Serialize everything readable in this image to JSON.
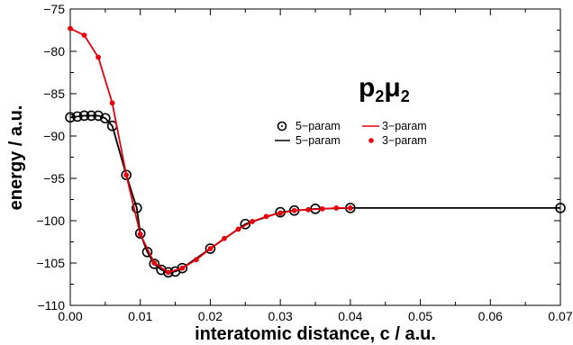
{
  "chart_data": {
    "type": "line",
    "xlabel": "interatomic distance, c / a.u.",
    "ylabel": "energy / a.u.",
    "xlim": [
      0.0,
      0.07
    ],
    "ylim": [
      -110,
      -75
    ],
    "x_ticks": [
      "0.00",
      "0.01",
      "0.02",
      "0.03",
      "0.04",
      "0.05",
      "0.06",
      "0.07"
    ],
    "y_ticks": [
      "−75",
      "−80",
      "−85",
      "−90",
      "−95",
      "−100",
      "−105",
      "−110"
    ],
    "annotation": {
      "base": "p",
      "sub1": "2",
      "greek": "μ",
      "sub2": "2"
    },
    "legend": [
      {
        "label": "5−param",
        "marker": "open-circle",
        "color": "#000000"
      },
      {
        "label": "3−param",
        "marker": "line",
        "color": "#e8000b"
      },
      {
        "label": "5−param",
        "marker": "line",
        "color": "#000000"
      },
      {
        "label": "3−param",
        "marker": "dot",
        "color": "#e8000b"
      }
    ],
    "series": [
      {
        "name": "5−param",
        "color": "#000000",
        "style": "line-open-circles",
        "x": [
          0.0,
          0.001,
          0.002,
          0.003,
          0.004,
          0.005,
          0.006,
          0.008,
          0.0095,
          0.01,
          0.011,
          0.012,
          0.013,
          0.014,
          0.015,
          0.016,
          0.02,
          0.025,
          0.03,
          0.032,
          0.035,
          0.04,
          0.07
        ],
        "y": [
          -87.8,
          -87.7,
          -87.6,
          -87.6,
          -87.6,
          -87.9,
          -88.8,
          -94.6,
          -98.5,
          -101.5,
          -103.7,
          -105.1,
          -105.8,
          -106.1,
          -106.0,
          -105.6,
          -103.3,
          -100.4,
          -99.0,
          -98.8,
          -98.6,
          -98.5,
          -98.5
        ]
      },
      {
        "name": "3−param",
        "color": "#e8000b",
        "style": "line-dots",
        "x": [
          0.0,
          0.002,
          0.004,
          0.006,
          0.008,
          0.01,
          0.012,
          0.014,
          0.016,
          0.018,
          0.02,
          0.022,
          0.024,
          0.026,
          0.028,
          0.03,
          0.032,
          0.034,
          0.036,
          0.038,
          0.04
        ],
        "y": [
          -77.3,
          -78.1,
          -80.7,
          -86.1,
          -94.6,
          -101.6,
          -105.0,
          -106.1,
          -105.6,
          -104.6,
          -103.3,
          -102.1,
          -101.0,
          -100.1,
          -99.5,
          -99.1,
          -98.8,
          -98.7,
          -98.6,
          -98.5,
          -98.5
        ]
      }
    ]
  }
}
